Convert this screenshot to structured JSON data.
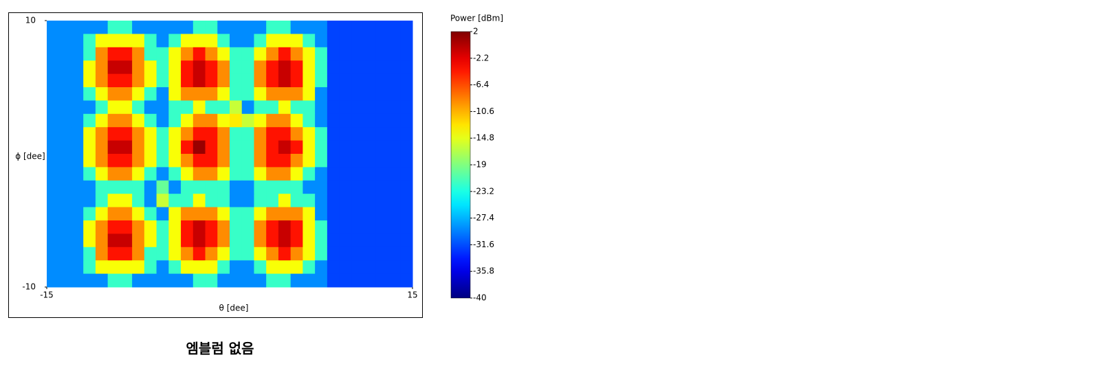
{
  "chart_data": {
    "type": "heatmap",
    "xlabel": "θ [dee]",
    "ylabel": "ϕ [dee]",
    "xlim": [
      -15,
      15
    ],
    "ylim": [
      -10,
      10
    ],
    "xticks": [
      -15,
      15
    ],
    "yticks": [
      -10,
      10
    ],
    "colorbar_title": "Power [dBm]",
    "colormap": "jet",
    "clim": [
      -40,
      2
    ],
    "cticks": [
      2,
      -2.2,
      -6.4,
      -10.6,
      -14.8,
      -19,
      -23.2,
      -27.4,
      -31.6,
      -35.8,
      -40
    ],
    "caption": "엠블럼 없음",
    "values": [
      [
        -29,
        -29,
        -29,
        -29,
        -29,
        -22,
        -22,
        -29,
        -29,
        -29,
        -29,
        -29,
        -22,
        -22,
        -29,
        -29,
        -29,
        -29,
        -22,
        -22,
        -29,
        -29,
        -29,
        -32,
        -32,
        -32,
        -32,
        -32,
        -32,
        -32
      ],
      [
        -29,
        -29,
        -29,
        -22,
        -14,
        -14,
        -14,
        -14,
        -22,
        -29,
        -22,
        -14,
        -14,
        -14,
        -22,
        -29,
        -29,
        -22,
        -14,
        -14,
        -14,
        -22,
        -29,
        -32,
        -32,
        -32,
        -32,
        -32,
        -32,
        -32
      ],
      [
        -29,
        -29,
        -29,
        -22,
        -9,
        -4,
        -4,
        -9,
        -22,
        -22,
        -14,
        -9,
        -4,
        -9,
        -14,
        -22,
        -22,
        -14,
        -9,
        -4,
        -9,
        -14,
        -22,
        -32,
        -32,
        -32,
        -32,
        -32,
        -32,
        -32
      ],
      [
        -29,
        -29,
        -29,
        -14,
        -9,
        -1,
        -1,
        -9,
        -14,
        -22,
        -14,
        -4,
        -1,
        -4,
        -9,
        -22,
        -22,
        -9,
        -4,
        -1,
        -4,
        -14,
        -22,
        -32,
        -32,
        -32,
        -32,
        -32,
        -32,
        -32
      ],
      [
        -29,
        -29,
        -29,
        -14,
        -9,
        -4,
        -4,
        -9,
        -14,
        -22,
        -14,
        -4,
        -1,
        -4,
        -9,
        -22,
        -22,
        -9,
        -4,
        -1,
        -4,
        -14,
        -22,
        -32,
        -32,
        -32,
        -32,
        -32,
        -32,
        -32
      ],
      [
        -29,
        -29,
        -29,
        -22,
        -14,
        -9,
        -9,
        -14,
        -22,
        -29,
        -14,
        -9,
        -9,
        -9,
        -14,
        -22,
        -22,
        -14,
        -9,
        -9,
        -9,
        -14,
        -29,
        -32,
        -32,
        -32,
        -32,
        -32,
        -32,
        -32
      ],
      [
        -29,
        -29,
        -29,
        -29,
        -22,
        -14,
        -14,
        -22,
        -29,
        -29,
        -22,
        -22,
        -14,
        -22,
        -22,
        -16,
        -29,
        -22,
        -22,
        -14,
        -22,
        -22,
        -29,
        -32,
        -32,
        -32,
        -32,
        -32,
        -32,
        -32
      ],
      [
        -29,
        -29,
        -29,
        -22,
        -14,
        -9,
        -9,
        -14,
        -22,
        -29,
        -22,
        -14,
        -9,
        -9,
        -14,
        -13,
        -16,
        -14,
        -9,
        -9,
        -14,
        -22,
        -29,
        -32,
        -32,
        -32,
        -32,
        -32,
        -32,
        -32
      ],
      [
        -29,
        -29,
        -29,
        -14,
        -9,
        -4,
        -4,
        -9,
        -14,
        -22,
        -14,
        -9,
        -4,
        -4,
        -9,
        -22,
        -22,
        -9,
        -4,
        -4,
        -9,
        -14,
        -22,
        -32,
        -32,
        -32,
        -32,
        -32,
        -32,
        -32
      ],
      [
        -29,
        -29,
        -29,
        -14,
        -9,
        -1,
        -1,
        -9,
        -14,
        -22,
        -14,
        -4,
        1,
        -4,
        -9,
        -22,
        -22,
        -9,
        -4,
        -1,
        -4,
        -14,
        -22,
        -32,
        -32,
        -32,
        -32,
        -32,
        -32,
        -32
      ],
      [
        -29,
        -29,
        -29,
        -14,
        -9,
        -4,
        -4,
        -9,
        -14,
        -22,
        -14,
        -9,
        -4,
        -4,
        -9,
        -22,
        -22,
        -9,
        -4,
        -4,
        -9,
        -14,
        -22,
        -32,
        -32,
        -32,
        -32,
        -32,
        -32,
        -32
      ],
      [
        -29,
        -29,
        -29,
        -22,
        -14,
        -9,
        -9,
        -14,
        -22,
        -29,
        -22,
        -14,
        -9,
        -9,
        -14,
        -22,
        -22,
        -14,
        -9,
        -9,
        -14,
        -22,
        -29,
        -32,
        -32,
        -32,
        -32,
        -32,
        -32,
        -32
      ],
      [
        -29,
        -29,
        -29,
        -29,
        -22,
        -22,
        -22,
        -22,
        -29,
        -20,
        -29,
        -22,
        -22,
        -22,
        -22,
        -29,
        -29,
        -22,
        -22,
        -22,
        -22,
        -29,
        -29,
        -32,
        -32,
        -32,
        -32,
        -32,
        -32,
        -32
      ],
      [
        -29,
        -29,
        -29,
        -29,
        -22,
        -14,
        -14,
        -22,
        -29,
        -16,
        -22,
        -22,
        -14,
        -22,
        -22,
        -29,
        -29,
        -22,
        -22,
        -14,
        -22,
        -22,
        -29,
        -32,
        -32,
        -32,
        -32,
        -32,
        -32,
        -32
      ],
      [
        -29,
        -29,
        -29,
        -22,
        -14,
        -9,
        -9,
        -14,
        -22,
        -29,
        -14,
        -9,
        -9,
        -9,
        -14,
        -22,
        -22,
        -14,
        -9,
        -9,
        -9,
        -14,
        -29,
        -32,
        -32,
        -32,
        -32,
        -32,
        -32,
        -32
      ],
      [
        -29,
        -29,
        -29,
        -14,
        -9,
        -4,
        -4,
        -9,
        -14,
        -22,
        -14,
        -4,
        -1,
        -4,
        -9,
        -22,
        -22,
        -9,
        -4,
        -1,
        -4,
        -14,
        -22,
        -32,
        -32,
        -32,
        -32,
        -32,
        -32,
        -32
      ],
      [
        -29,
        -29,
        -29,
        -14,
        -9,
        -1,
        -1,
        -9,
        -14,
        -22,
        -14,
        -4,
        -1,
        -4,
        -9,
        -22,
        -22,
        -9,
        -4,
        -1,
        -4,
        -14,
        -22,
        -32,
        -32,
        -32,
        -32,
        -32,
        -32,
        -32
      ],
      [
        -29,
        -29,
        -29,
        -22,
        -9,
        -4,
        -4,
        -9,
        -22,
        -22,
        -14,
        -9,
        -4,
        -9,
        -14,
        -22,
        -22,
        -14,
        -9,
        -4,
        -9,
        -14,
        -22,
        -32,
        -32,
        -32,
        -32,
        -32,
        -32,
        -32
      ],
      [
        -29,
        -29,
        -29,
        -22,
        -14,
        -14,
        -14,
        -14,
        -22,
        -29,
        -22,
        -14,
        -14,
        -14,
        -22,
        -29,
        -29,
        -22,
        -14,
        -14,
        -14,
        -22,
        -29,
        -32,
        -32,
        -32,
        -32,
        -32,
        -32,
        -32
      ],
      [
        -29,
        -29,
        -29,
        -29,
        -29,
        -22,
        -22,
        -29,
        -29,
        -29,
        -29,
        -29,
        -22,
        -22,
        -29,
        -29,
        -29,
        -29,
        -22,
        -22,
        -29,
        -29,
        -29,
        -32,
        -32,
        -32,
        -32,
        -32,
        -32,
        -32
      ]
    ]
  }
}
